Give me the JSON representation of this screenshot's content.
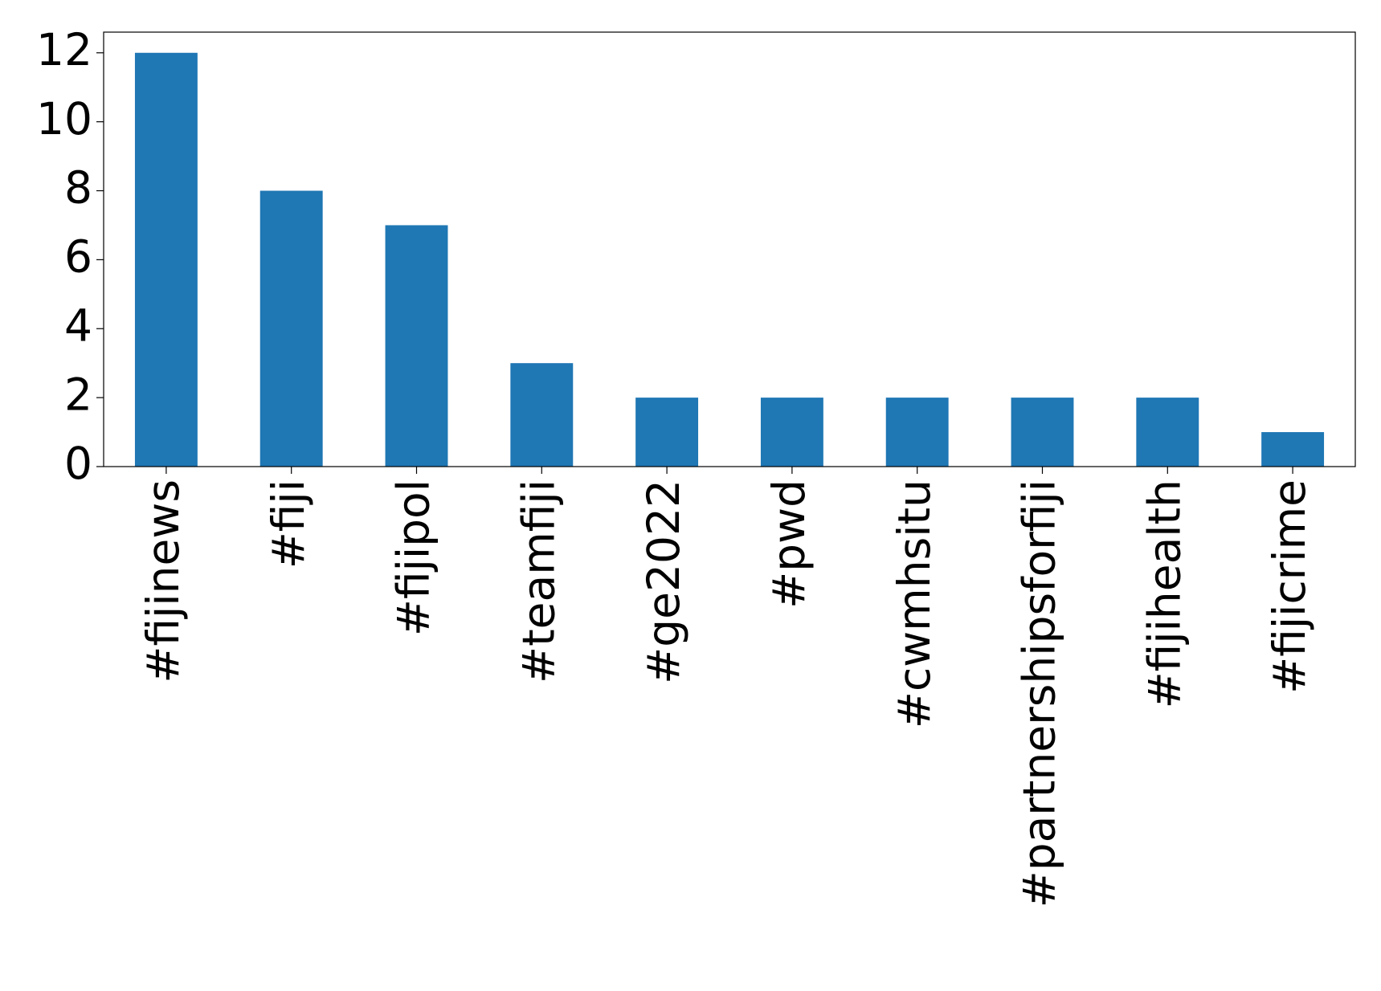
{
  "chart_data": {
    "type": "bar",
    "categories": [
      "#fijinews",
      "#fiji",
      "#fijipol",
      "#teamfiji",
      "#ge2022",
      "#pwd",
      "#cwmhsitu",
      "#partnershipsforfiji",
      "#fijihealth",
      "#fijicrime"
    ],
    "values": [
      12,
      8,
      7,
      3,
      2,
      2,
      2,
      2,
      2,
      1
    ],
    "color": "#1f77b4",
    "ylim": [
      0,
      12.6
    ],
    "yticks": [
      0,
      2,
      4,
      6,
      8,
      10,
      12
    ],
    "grid": false
  }
}
